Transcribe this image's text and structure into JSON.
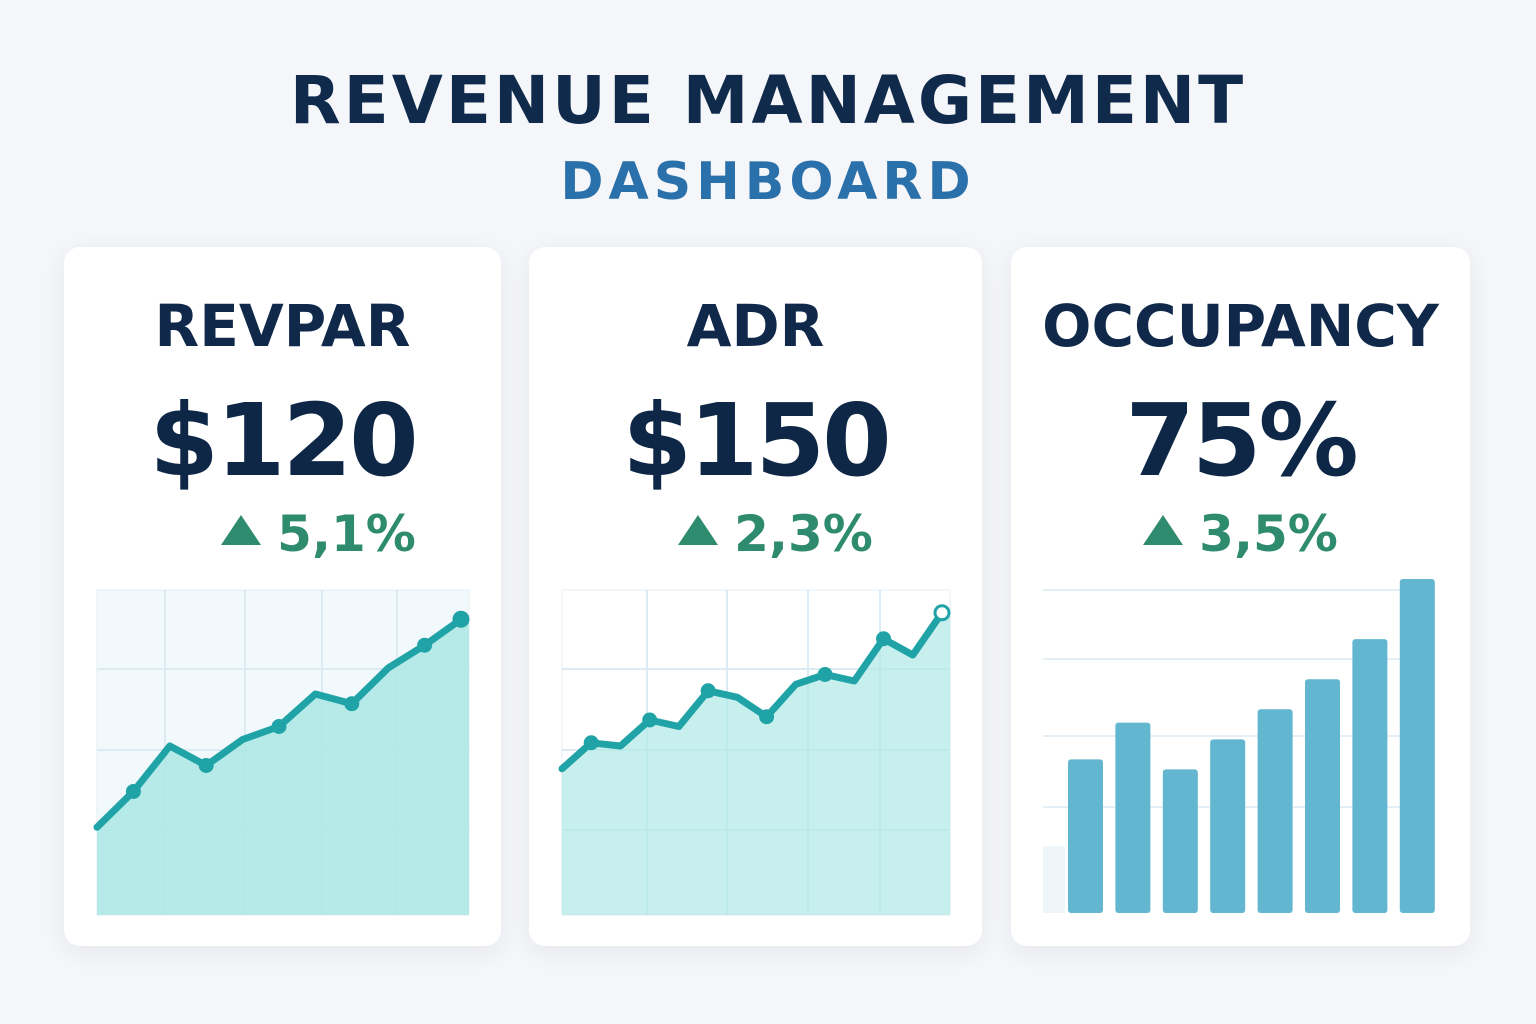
{
  "header": {
    "title": "REVENUE MANAGEMENT",
    "subtitle": "DASHBOARD"
  },
  "colors": {
    "line": "#20a3a6",
    "area": "#aee8e6",
    "bar": "#62b6cf",
    "positive": "#2e8b6e",
    "title": "#0f2a4b",
    "subtitle": "#2a70aa"
  },
  "cards": [
    {
      "title": "REVPAR",
      "value": "$120",
      "change": "5,1%",
      "trend_icon": "triangle-up-icon"
    },
    {
      "title": "ADR",
      "value": "$150",
      "change": "2,3%",
      "trend_icon": "triangle-up-icon"
    },
    {
      "title": "OCCUPANCY",
      "value": "75%",
      "change": "3,5%",
      "trend_icon": "triangle-up-icon"
    }
  ],
  "chart_data": [
    {
      "type": "area",
      "grid": true,
      "ylim": [
        0,
        100
      ],
      "values": [
        27,
        38,
        52,
        46,
        54,
        58,
        68,
        65,
        76,
        83,
        91
      ]
    },
    {
      "type": "area",
      "grid": true,
      "ylim": [
        0,
        100
      ],
      "values": [
        45,
        53,
        52,
        60,
        58,
        69,
        67,
        61,
        71,
        74,
        72,
        85,
        80,
        93
      ]
    },
    {
      "type": "bar",
      "grid": true,
      "ylim": [
        0,
        100
      ],
      "values": [
        20,
        46,
        57,
        43,
        52,
        61,
        70,
        82,
        100
      ]
    }
  ]
}
